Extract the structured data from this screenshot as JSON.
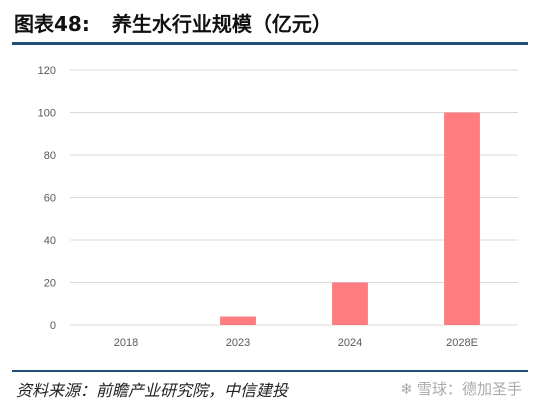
{
  "figure": {
    "label": "图表48:",
    "title": "养生水行业规模（亿元）"
  },
  "footer": {
    "source": "资料来源：前瞻产业研究院，中信建投",
    "watermark": "雪球：德加圣手",
    "watermark_icon": "snowball-logo-icon"
  },
  "colors": {
    "bar": "#FF7C80",
    "grid": "#D9D9D9",
    "rule": "#1F4E79"
  },
  "chart_data": {
    "type": "bar",
    "title": "养生水行业规模（亿元）",
    "categories": [
      "2018",
      "2023",
      "2024",
      "2028E"
    ],
    "values": [
      0,
      4,
      20,
      100
    ],
    "y_ticks": [
      0,
      20,
      40,
      60,
      80,
      100,
      120
    ],
    "ylim": [
      0,
      120
    ],
    "xlabel": "",
    "ylabel": "",
    "grid": true,
    "legend": "none"
  }
}
